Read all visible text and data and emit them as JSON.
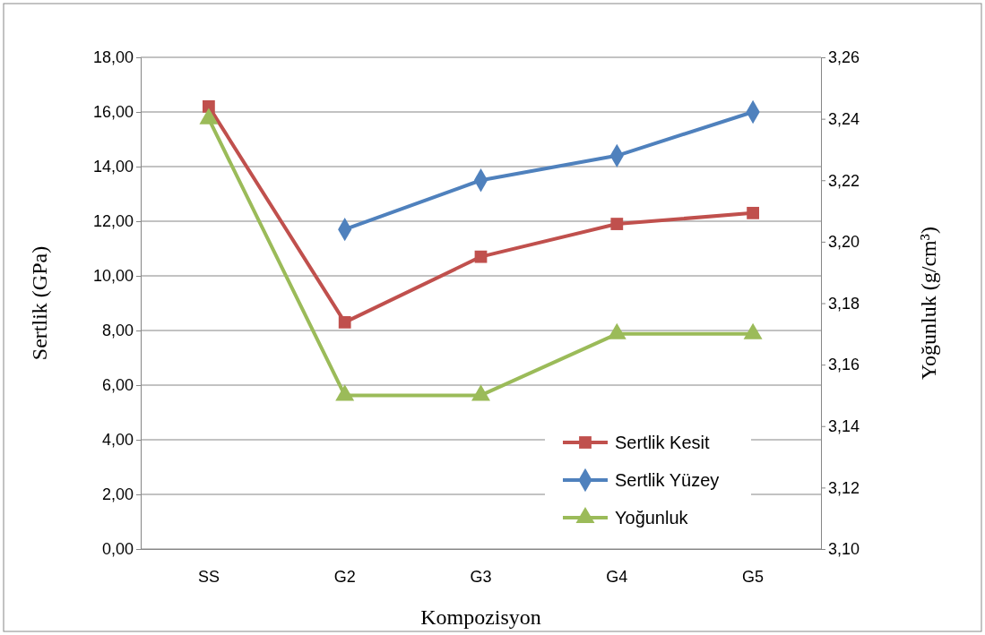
{
  "chart_data": {
    "type": "line",
    "xlabel": "Kompozisyon",
    "ylabel": "Sertlik (GPa)",
    "y2label": "Yoğunluk (g/cm³)",
    "categories": [
      "SS",
      "G2",
      "G3",
      "G4",
      "G5"
    ],
    "ylim": [
      0,
      18
    ],
    "yticks": [
      {
        "value": 0,
        "label": "0,00"
      },
      {
        "value": 2,
        "label": "2,00"
      },
      {
        "value": 4,
        "label": "4,00"
      },
      {
        "value": 6,
        "label": "6,00"
      },
      {
        "value": 8,
        "label": "8,00"
      },
      {
        "value": 10,
        "label": "10,00"
      },
      {
        "value": 12,
        "label": "12,00"
      },
      {
        "value": 14,
        "label": "14,00"
      },
      {
        "value": 16,
        "label": "16,00"
      },
      {
        "value": 18,
        "label": "18,00"
      }
    ],
    "y2lim": [
      3.1,
      3.26
    ],
    "y2ticks": [
      {
        "value": 3.1,
        "label": "3,10"
      },
      {
        "value": 3.12,
        "label": "3,12"
      },
      {
        "value": 3.14,
        "label": "3,14"
      },
      {
        "value": 3.16,
        "label": "3,16"
      },
      {
        "value": 3.18,
        "label": "3,18"
      },
      {
        "value": 3.2,
        "label": "3,20"
      },
      {
        "value": 3.22,
        "label": "3,22"
      },
      {
        "value": 3.24,
        "label": "3,24"
      },
      {
        "value": 3.26,
        "label": "3,26"
      }
    ],
    "grid": "y",
    "legend": "bottom right",
    "series": [
      {
        "name": "Sertlik Kesit",
        "color": "#c0504d",
        "marker": "square",
        "values": [
          16.2,
          8.3,
          10.7,
          11.9,
          12.3
        ]
      },
      {
        "name": "Sertlik Yüzey",
        "color": "#4f81bd",
        "marker": "diamond",
        "values": [
          null,
          11.7,
          13.5,
          14.4,
          16.0
        ]
      },
      {
        "name": "Yoğunluk",
        "color": "#9bbb59",
        "marker": "triangle",
        "axis": "y2",
        "values": [
          3.24,
          3.15,
          3.15,
          3.17,
          3.17
        ]
      }
    ]
  }
}
